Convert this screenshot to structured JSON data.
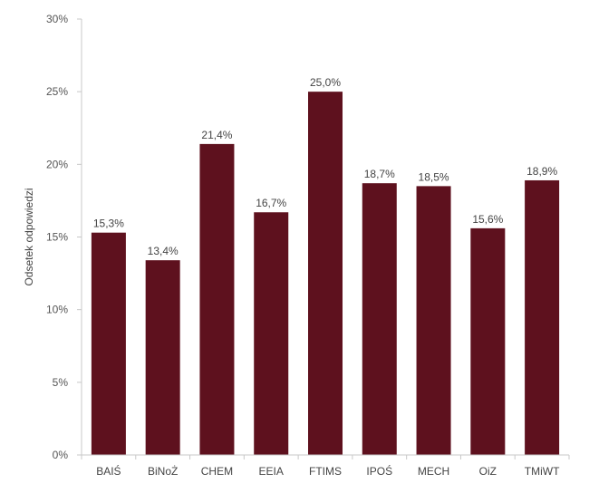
{
  "chart_data": {
    "type": "bar",
    "title": "",
    "xlabel": "",
    "ylabel": "Odsetek odpowiedzi",
    "categories": [
      "BAIŚ",
      "BiNoŻ",
      "CHEM",
      "EEIA",
      "FTIMS",
      "IPOŚ",
      "MECH",
      "OiZ",
      "TMiWT"
    ],
    "values": [
      15.3,
      13.4,
      21.4,
      16.7,
      25.0,
      18.7,
      18.5,
      15.6,
      18.9
    ],
    "data_labels": [
      "15,3%",
      "13,4%",
      "21,4%",
      "16,7%",
      "25,0%",
      "18,7%",
      "18,5%",
      "15,6%",
      "18,9%"
    ],
    "ylim": [
      0,
      30
    ],
    "yticks": [
      0,
      5,
      10,
      15,
      20,
      25,
      30
    ],
    "ytick_labels": [
      "0%",
      "5%",
      "10%",
      "15%",
      "20%",
      "25%",
      "30%"
    ],
    "grid": false,
    "legend": "none",
    "colors": {
      "bar": "#5e111e",
      "axis": "#c8c8c8"
    }
  }
}
